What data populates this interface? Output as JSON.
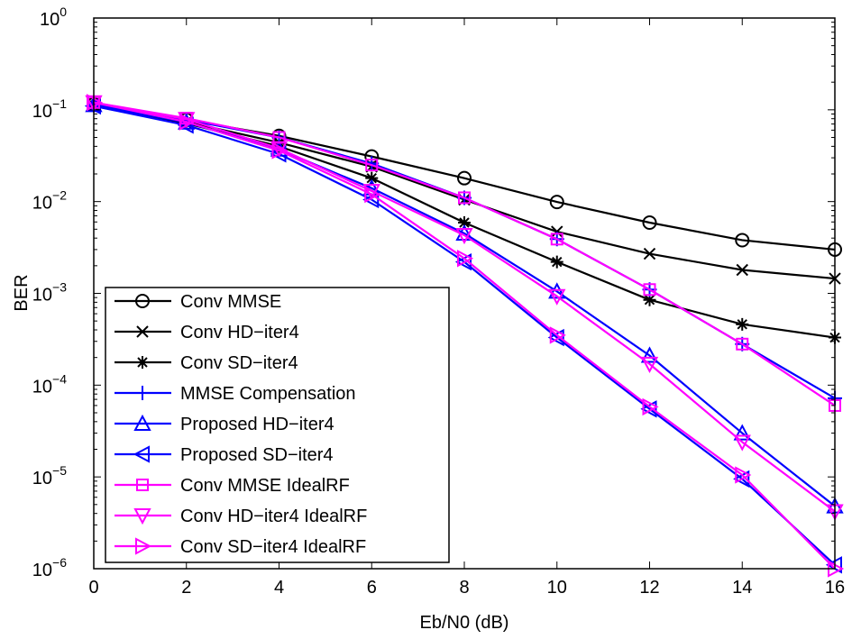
{
  "chart_data": {
    "type": "line",
    "title": "",
    "xlabel": "Eb/N0 (dB)",
    "ylabel": "BER",
    "xlim": [
      0,
      16
    ],
    "ylim": [
      1e-06,
      1
    ],
    "yscale": "log",
    "grid": false,
    "legend_position": "bottom-left",
    "x_ticks": [
      "0",
      "2",
      "4",
      "6",
      "8",
      "10",
      "12",
      "14",
      "16"
    ],
    "y_ticks": [
      {
        "base": "10",
        "exp": "0"
      },
      {
        "base": "10",
        "exp": "−1"
      },
      {
        "base": "10",
        "exp": "−2"
      },
      {
        "base": "10",
        "exp": "−3"
      },
      {
        "base": "10",
        "exp": "−4"
      },
      {
        "base": "10",
        "exp": "−5"
      },
      {
        "base": "10",
        "exp": "−6"
      }
    ],
    "x": [
      0,
      2,
      4,
      6,
      8,
      10,
      12,
      14,
      16
    ],
    "series": [
      {
        "name": "Conv MMSE",
        "color": "#000000",
        "marker": "circle",
        "values": [
          0.115,
          0.078,
          0.052,
          0.031,
          0.018,
          0.0099,
          0.0059,
          0.0038,
          0.003
        ]
      },
      {
        "name": "Conv HD−iter4",
        "color": "#000000",
        "marker": "x",
        "values": [
          0.113,
          0.074,
          0.044,
          0.024,
          0.0105,
          0.0047,
          0.0027,
          0.0018,
          0.00145
        ]
      },
      {
        "name": "Conv SD−iter4",
        "color": "#000000",
        "marker": "star",
        "values": [
          0.11,
          0.071,
          0.04,
          0.018,
          0.0059,
          0.0022,
          0.00085,
          0.00046,
          0.00033
        ]
      },
      {
        "name": "MMSE Compensation",
        "color": "#0000ff",
        "marker": "plus",
        "values": [
          0.115,
          0.078,
          0.05,
          0.026,
          0.011,
          0.0039,
          0.0011,
          0.00028,
          7.2e-05
        ]
      },
      {
        "name": "Proposed HD−iter4",
        "color": "#0000ff",
        "marker": "triangle-up",
        "values": [
          0.113,
          0.073,
          0.037,
          0.014,
          0.0045,
          0.00105,
          0.00021,
          3e-05,
          4.8e-06
        ]
      },
      {
        "name": "Proposed SD−iter4",
        "color": "#0000ff",
        "marker": "triangle-left",
        "values": [
          0.11,
          0.068,
          0.033,
          0.0105,
          0.0022,
          0.00033,
          5.5e-05,
          9.5e-06,
          1.1e-06
        ]
      },
      {
        "name": "Conv MMSE IdealRF",
        "color": "#ff00ff",
        "marker": "square",
        "values": [
          0.12,
          0.081,
          0.05,
          0.025,
          0.011,
          0.0039,
          0.0011,
          0.00028,
          6e-05
        ]
      },
      {
        "name": "Conv HD−iter4 IdealRF",
        "color": "#ff00ff",
        "marker": "triangle-down",
        "values": [
          0.12,
          0.079,
          0.038,
          0.013,
          0.0043,
          0.00093,
          0.00017,
          2.4e-05,
          4.2e-06
        ]
      },
      {
        "name": "Conv SD−iter4 IdealRF",
        "color": "#ff00ff",
        "marker": "triangle-right",
        "values": [
          0.12,
          0.074,
          0.036,
          0.012,
          0.0024,
          0.00035,
          5.8e-05,
          1.05e-05,
          1e-06
        ]
      }
    ]
  }
}
